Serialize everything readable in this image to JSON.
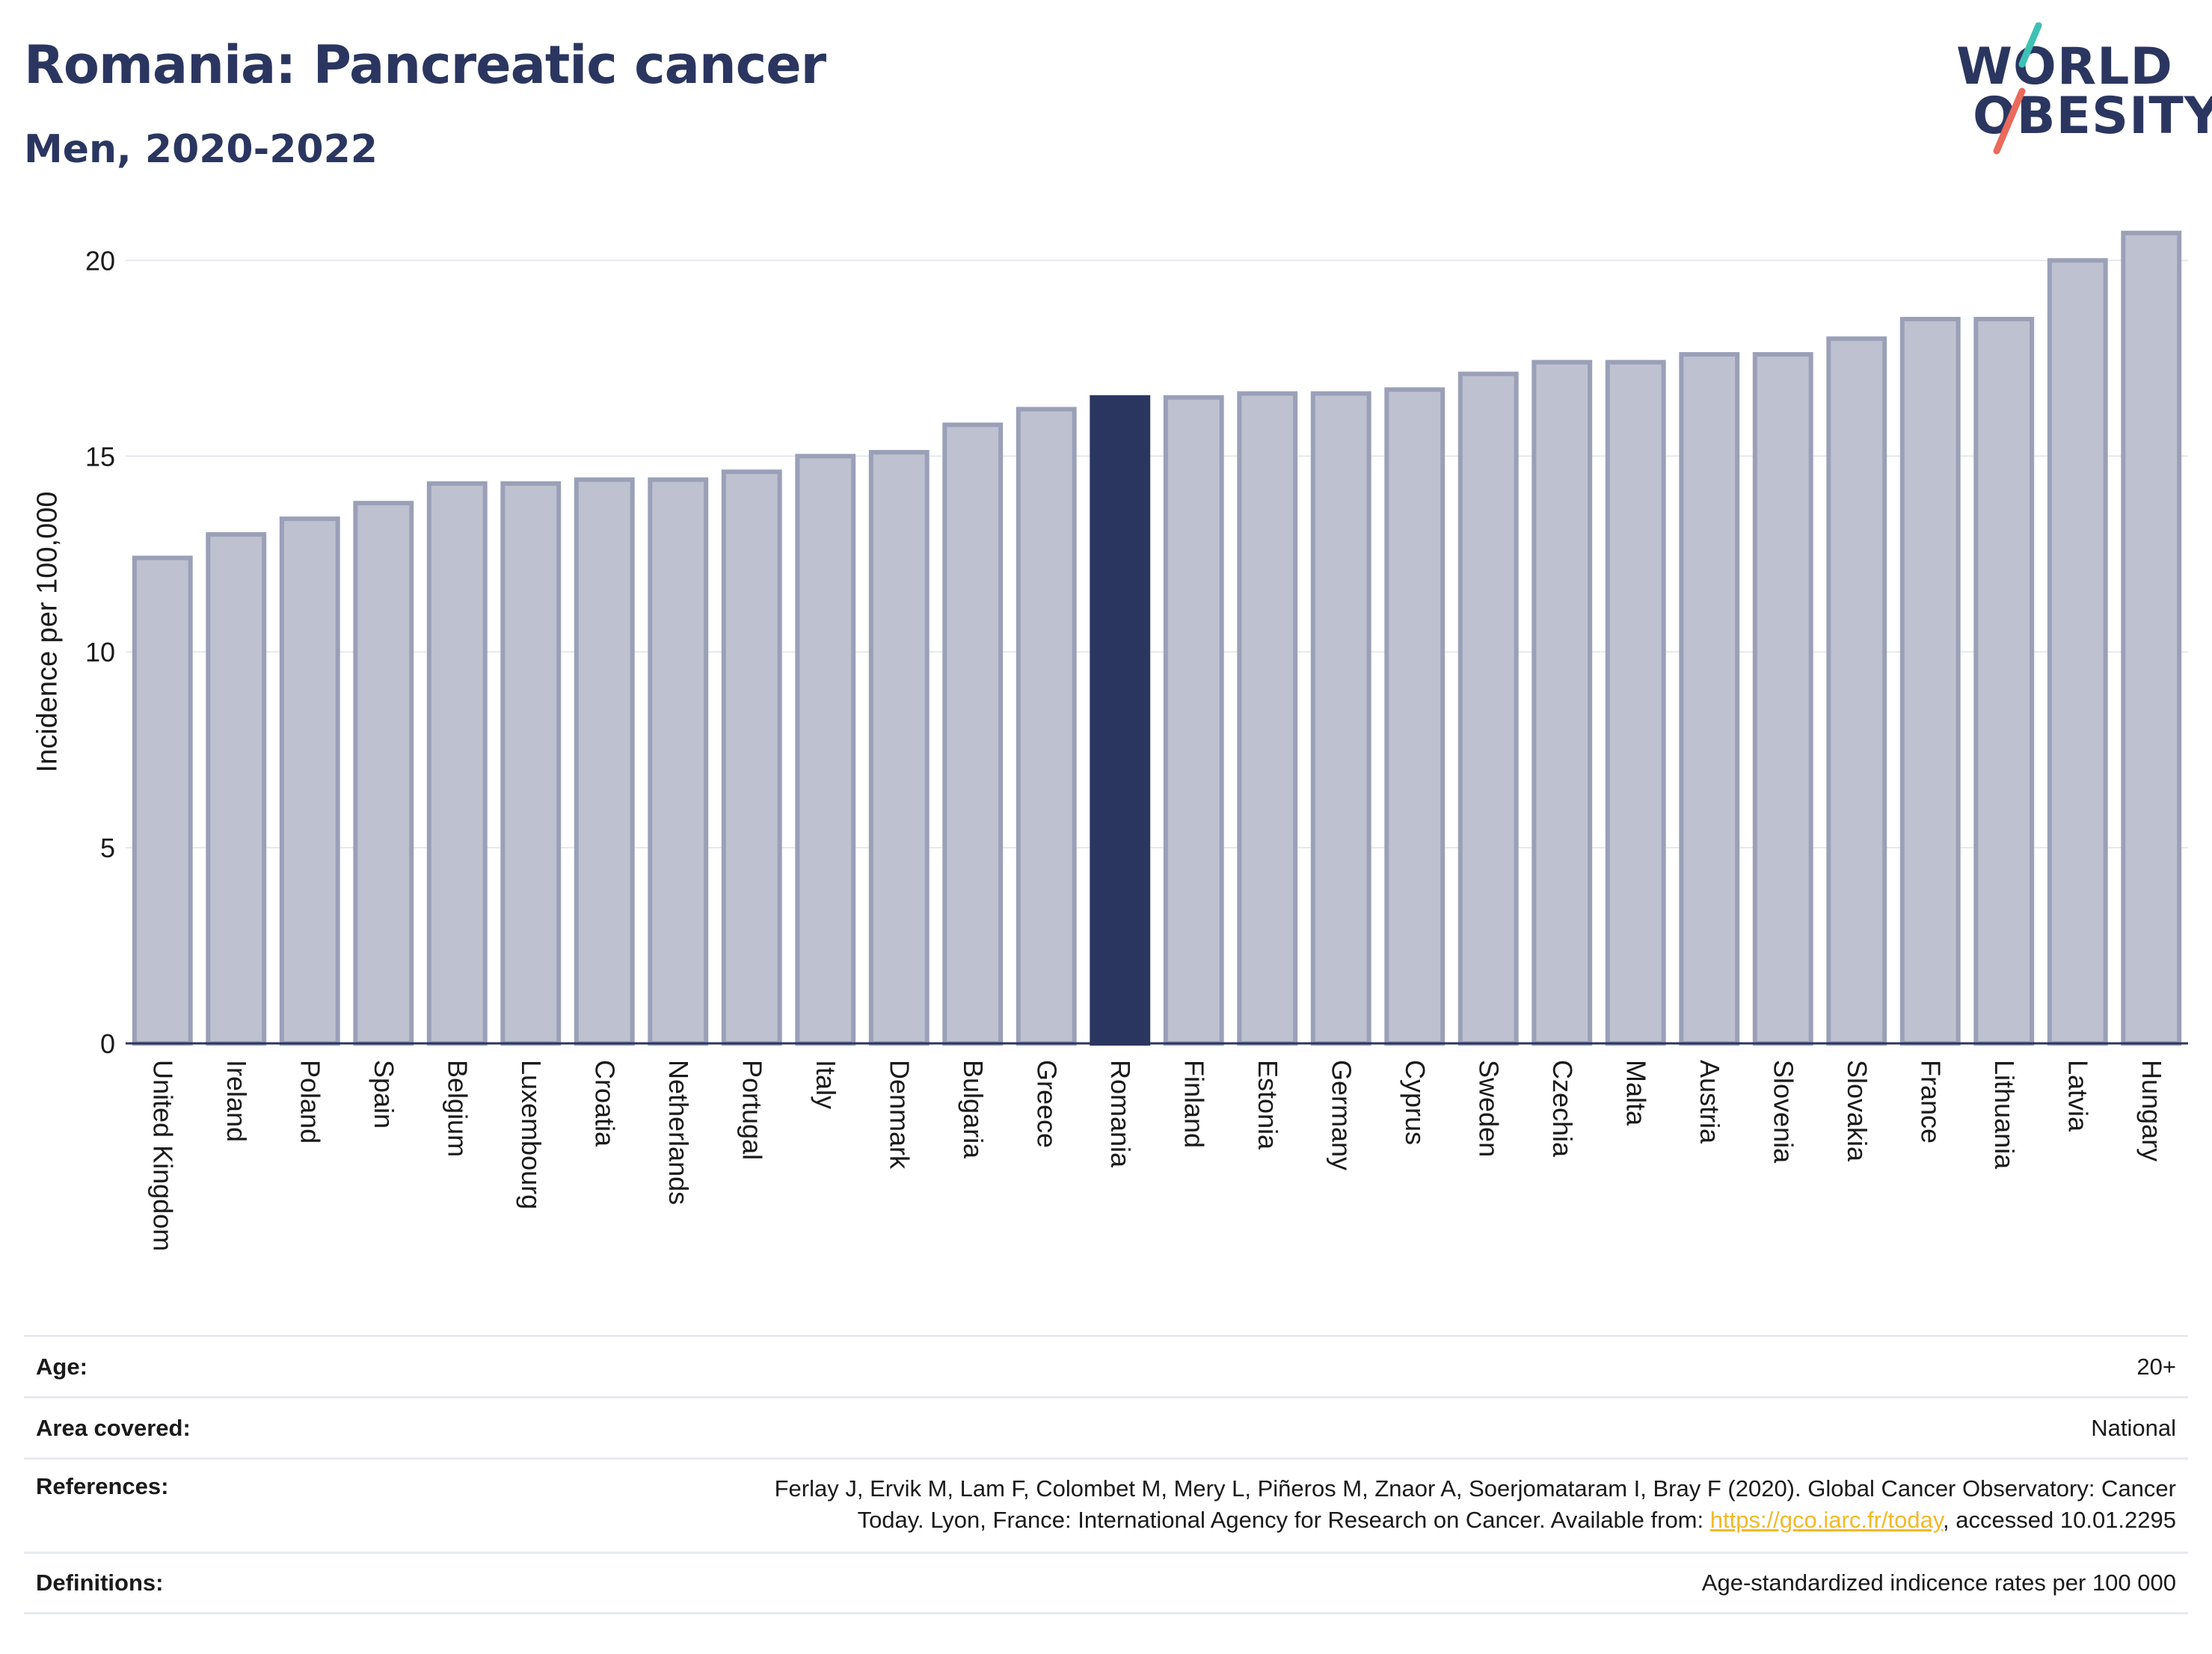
{
  "header": {
    "title": "Romania: Pancreatic cancer",
    "subtitle": "Men, 2020-2022"
  },
  "logo": {
    "line1": "WORLD",
    "line2": "OBESITY",
    "accent_teal": "#3ec1b5",
    "accent_red": "#ec6a5c"
  },
  "colors": {
    "bar_fill": "#bec1cf",
    "bar_stroke": "#9aa0b8",
    "highlight": "#2b3660",
    "grid": "#e6e8ee",
    "axis": "#2b3660"
  },
  "chart_data": {
    "type": "bar",
    "title": "",
    "xlabel": "",
    "ylabel": "Incidence per 100,000",
    "ylim": [
      0,
      21
    ],
    "yticks": [
      0,
      5,
      10,
      15,
      20
    ],
    "grid": true,
    "highlight_category": "Romania",
    "categories": [
      "United Kingdom",
      "Ireland",
      "Poland",
      "Spain",
      "Belgium",
      "Luxembourg",
      "Croatia",
      "Netherlands",
      "Portugal",
      "Italy",
      "Denmark",
      "Bulgaria",
      "Greece",
      "Romania",
      "Finland",
      "Estonia",
      "Germany",
      "Cyprus",
      "Sweden",
      "Czechia",
      "Malta",
      "Austria",
      "Slovenia",
      "Slovakia",
      "France",
      "Lithuania",
      "Latvia",
      "Hungary"
    ],
    "values": [
      12.4,
      13.0,
      13.4,
      13.8,
      14.3,
      14.3,
      14.4,
      14.4,
      14.6,
      15.0,
      15.1,
      15.8,
      16.2,
      16.5,
      16.5,
      16.6,
      16.6,
      16.7,
      17.1,
      17.4,
      17.4,
      17.6,
      17.6,
      18.0,
      18.5,
      18.5,
      20.0,
      20.7
    ]
  },
  "info": {
    "age_label": "Age:",
    "age_value": "20+",
    "area_label": "Area covered:",
    "area_value": "National",
    "references_label": "References:",
    "references_text_1": "Ferlay J, Ervik M, Lam F, Colombet M, Mery L, Piñeros M, Znaor A, Soerjomataram I, Bray F (2020). Global Cancer Observatory: Cancer",
    "references_text_2": "Today. Lyon, France: International Agency for Research on Cancer. Available from: ",
    "references_link": "https://gco.iarc.fr/today",
    "references_text_3": ", accessed 10.01.2295",
    "definitions_label": "Definitions:",
    "definitions_value": "Age-standardized indicence rates per 100 000"
  }
}
